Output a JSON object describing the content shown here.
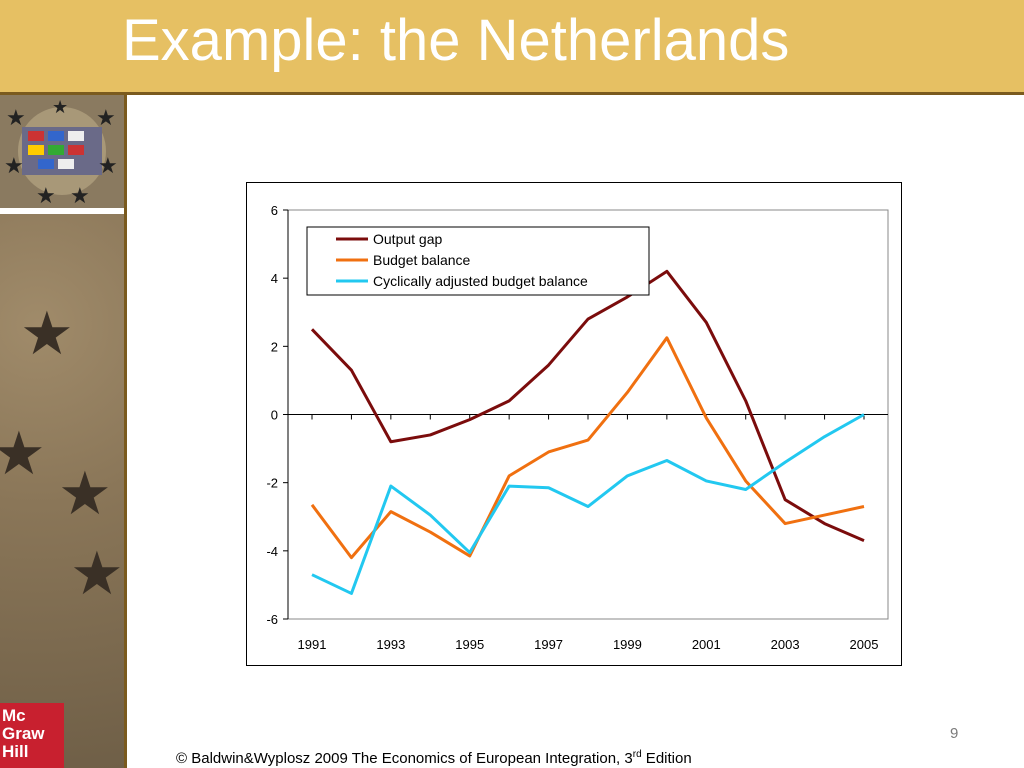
{
  "slide": {
    "title": "Example: the Netherlands",
    "page_number": "9",
    "footer_prefix": "© Baldwin&Wyplosz 2009 The Economics of European Integration, 3",
    "footer_sup": "rd",
    "footer_suffix": " Edition",
    "logo_text": [
      "Mc",
      "Graw",
      "Hill"
    ]
  },
  "chart_data": {
    "type": "line",
    "x": [
      1991,
      1992,
      1993,
      1994,
      1995,
      1996,
      1997,
      1998,
      1999,
      2000,
      2001,
      2002,
      2003,
      2004,
      2005
    ],
    "x_tick_labels": [
      "1991",
      "1993",
      "1995",
      "1997",
      "1999",
      "2001",
      "2003",
      "2005"
    ],
    "y_tick_labels": [
      "6",
      "4",
      "2",
      "0",
      "-2",
      "-4",
      "-6"
    ],
    "ylim": [
      -6,
      6
    ],
    "grid": false,
    "legend_position": "top-left",
    "series": [
      {
        "name": "Output gap",
        "color": "#7b0c0c",
        "values": [
          2.5,
          1.3,
          -0.8,
          -0.6,
          -0.15,
          0.4,
          1.45,
          2.8,
          3.45,
          4.2,
          2.7,
          0.4,
          -2.5,
          -3.2,
          -3.7
        ]
      },
      {
        "name": "Budget balance",
        "color": "#f07010",
        "values": [
          -2.65,
          -4.2,
          -2.85,
          -3.45,
          -4.15,
          -1.8,
          -1.1,
          -0.75,
          0.65,
          2.25,
          -0.1,
          -1.95,
          -3.2,
          -2.95,
          -2.7
        ]
      },
      {
        "name": "Cyclically adjusted budget balance",
        "color": "#22c8f0",
        "values": [
          -4.7,
          -5.25,
          -2.1,
          -2.95,
          -4.05,
          -2.1,
          -2.15,
          -2.7,
          -1.8,
          -1.35,
          -1.95,
          -2.2,
          -1.4,
          -0.65,
          0.0
        ]
      }
    ]
  }
}
